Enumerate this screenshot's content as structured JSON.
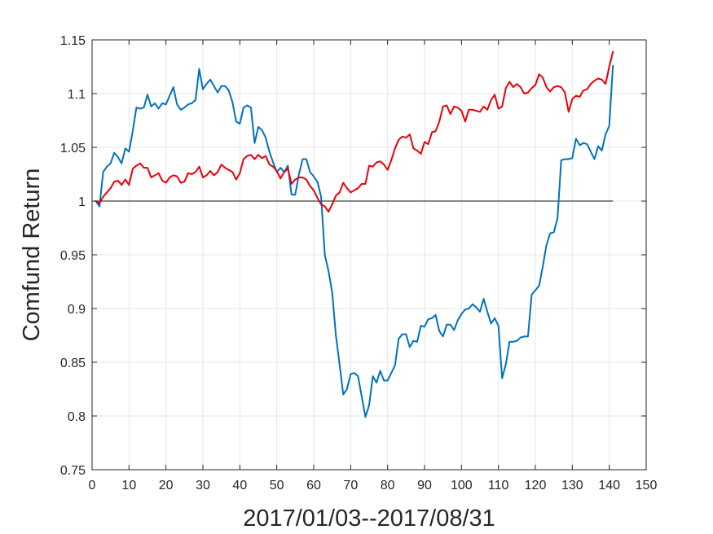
{
  "chart_data": {
    "type": "line",
    "xlabel": "2017/01/03--2017/08/31",
    "ylabel": "Comfund Return",
    "xlim": [
      0,
      150
    ],
    "ylim": [
      0.75,
      1.15
    ],
    "xticks": [
      0,
      10,
      20,
      30,
      40,
      50,
      60,
      70,
      80,
      90,
      100,
      110,
      120,
      130,
      140,
      150
    ],
    "yticks": [
      0.75,
      0.8,
      0.85,
      0.9,
      0.95,
      1,
      1.05,
      1.1,
      1.15
    ],
    "xtick_labels": [
      "0",
      "10",
      "20",
      "30",
      "40",
      "50",
      "60",
      "70",
      "80",
      "90",
      "100",
      "110",
      "120",
      "130",
      "140",
      "150"
    ],
    "ytick_labels": [
      "0.75",
      "0.8",
      "0.85",
      "0.9",
      "0.95",
      "1",
      "1.05",
      "1.1",
      "1.15"
    ],
    "grid": true,
    "reference_line": {
      "y": 1,
      "x_range": [
        1,
        141
      ],
      "color": "#404040"
    },
    "series": [
      {
        "color": "#0072BD",
        "x": [
          1,
          2,
          3,
          4,
          5,
          6,
          7,
          8,
          9,
          10,
          11,
          12,
          13,
          14,
          15,
          16,
          17,
          18,
          19,
          20,
          21,
          22,
          23,
          24,
          25,
          26,
          27,
          28,
          29,
          30,
          31,
          32,
          33,
          34,
          35,
          36,
          37,
          38,
          39,
          40,
          41,
          42,
          43,
          44,
          45,
          46,
          47,
          48,
          49,
          50,
          51,
          52,
          53,
          54,
          55,
          56,
          57,
          58,
          59,
          60,
          61,
          62,
          63,
          64,
          65,
          66,
          67,
          68,
          69,
          70,
          71,
          72,
          73,
          74,
          75,
          76,
          77,
          78,
          79,
          80,
          81,
          82,
          83,
          84,
          85,
          86,
          87,
          88,
          89,
          90,
          91,
          92,
          93,
          94,
          95,
          96,
          97,
          98,
          99,
          100,
          101,
          102,
          103,
          104,
          105,
          106,
          107,
          108,
          109,
          110,
          111,
          112,
          113,
          114,
          115,
          116,
          117,
          118,
          119,
          120,
          121,
          122,
          123,
          124,
          125,
          126,
          127,
          128,
          129,
          130,
          131,
          132,
          133,
          134,
          135,
          136,
          137,
          138,
          139,
          140,
          141
        ],
        "y": [
          1.0,
          0.995,
          1.027,
          1.032,
          1.035,
          1.045,
          1.041,
          1.035,
          1.049,
          1.046,
          1.065,
          1.087,
          1.086,
          1.087,
          1.099,
          1.088,
          1.091,
          1.086,
          1.091,
          1.09,
          1.098,
          1.106,
          1.09,
          1.085,
          1.087,
          1.09,
          1.091,
          1.094,
          1.123,
          1.104,
          1.109,
          1.113,
          1.107,
          1.101,
          1.107,
          1.107,
          1.103,
          1.092,
          1.074,
          1.072,
          1.087,
          1.089,
          1.087,
          1.054,
          1.069,
          1.066,
          1.059,
          1.046,
          1.036,
          1.027,
          1.031,
          1.027,
          1.033,
          1.006,
          1.006,
          1.025,
          1.039,
          1.039,
          1.027,
          1.023,
          1.018,
          1.004,
          0.95,
          0.935,
          0.915,
          0.875,
          0.848,
          0.82,
          0.825,
          0.839,
          0.84,
          0.837,
          0.818,
          0.799,
          0.81,
          0.837,
          0.831,
          0.842,
          0.833,
          0.833,
          0.84,
          0.847,
          0.872,
          0.876,
          0.876,
          0.864,
          0.87,
          0.869,
          0.884,
          0.883,
          0.89,
          0.891,
          0.894,
          0.879,
          0.874,
          0.885,
          0.885,
          0.88,
          0.889,
          0.895,
          0.899,
          0.9,
          0.904,
          0.901,
          0.897,
          0.909,
          0.897,
          0.886,
          0.891,
          0.884,
          0.835,
          0.848,
          0.869,
          0.869,
          0.87,
          0.873,
          0.874,
          0.874,
          0.913,
          0.917,
          0.921,
          0.939,
          0.959,
          0.97,
          0.971,
          0.984,
          1.038,
          1.039,
          1.039,
          1.04,
          1.058,
          1.052,
          1.054,
          1.053,
          1.046,
          1.039,
          1.051,
          1.047,
          1.062,
          1.07,
          1.126
        ]
      },
      {
        "color": "#E8000B",
        "x": [
          1,
          2,
          3,
          4,
          5,
          6,
          7,
          8,
          9,
          10,
          11,
          12,
          13,
          14,
          15,
          16,
          17,
          18,
          19,
          20,
          21,
          22,
          23,
          24,
          25,
          26,
          27,
          28,
          29,
          30,
          31,
          32,
          33,
          34,
          35,
          36,
          37,
          38,
          39,
          40,
          41,
          42,
          43,
          44,
          45,
          46,
          47,
          48,
          49,
          50,
          51,
          52,
          53,
          54,
          55,
          56,
          57,
          58,
          59,
          60,
          61,
          62,
          63,
          64,
          65,
          66,
          67,
          68,
          69,
          70,
          71,
          72,
          73,
          74,
          75,
          76,
          77,
          78,
          79,
          80,
          81,
          82,
          83,
          84,
          85,
          86,
          87,
          88,
          89,
          90,
          91,
          92,
          93,
          94,
          95,
          96,
          97,
          98,
          99,
          100,
          101,
          102,
          103,
          104,
          105,
          106,
          107,
          108,
          109,
          110,
          111,
          112,
          113,
          114,
          115,
          116,
          117,
          118,
          119,
          120,
          121,
          122,
          123,
          124,
          125,
          126,
          127,
          128,
          129,
          130,
          131,
          132,
          133,
          134,
          135,
          136,
          137,
          138,
          139,
          140,
          141
        ],
        "y": [
          1.0,
          0.998,
          1.004,
          1.008,
          1.012,
          1.018,
          1.019,
          1.015,
          1.02,
          1.015,
          1.03,
          1.033,
          1.035,
          1.031,
          1.031,
          1.022,
          1.024,
          1.026,
          1.019,
          1.017,
          1.022,
          1.024,
          1.023,
          1.017,
          1.018,
          1.026,
          1.025,
          1.027,
          1.032,
          1.022,
          1.024,
          1.028,
          1.024,
          1.027,
          1.034,
          1.031,
          1.029,
          1.027,
          1.02,
          1.026,
          1.039,
          1.042,
          1.043,
          1.039,
          1.043,
          1.04,
          1.042,
          1.034,
          1.032,
          1.028,
          1.021,
          1.027,
          1.03,
          1.016,
          1.02,
          1.022,
          1.022,
          1.02,
          1.014,
          1.01,
          1.003,
          0.997,
          0.995,
          0.99,
          0.997,
          1.005,
          1.008,
          1.017,
          1.012,
          1.008,
          1.01,
          1.012,
          1.016,
          1.016,
          1.033,
          1.032,
          1.036,
          1.037,
          1.034,
          1.029,
          1.038,
          1.049,
          1.057,
          1.06,
          1.059,
          1.062,
          1.049,
          1.047,
          1.044,
          1.055,
          1.053,
          1.064,
          1.065,
          1.074,
          1.088,
          1.089,
          1.081,
          1.088,
          1.087,
          1.084,
          1.074,
          1.085,
          1.085,
          1.084,
          1.083,
          1.088,
          1.085,
          1.094,
          1.099,
          1.086,
          1.088,
          1.105,
          1.111,
          1.106,
          1.109,
          1.106,
          1.1,
          1.101,
          1.105,
          1.108,
          1.118,
          1.115,
          1.106,
          1.102,
          1.106,
          1.107,
          1.106,
          1.101,
          1.083,
          1.095,
          1.098,
          1.097,
          1.103,
          1.104,
          1.109,
          1.112,
          1.114,
          1.113,
          1.109,
          1.125,
          1.139
        ]
      }
    ]
  }
}
